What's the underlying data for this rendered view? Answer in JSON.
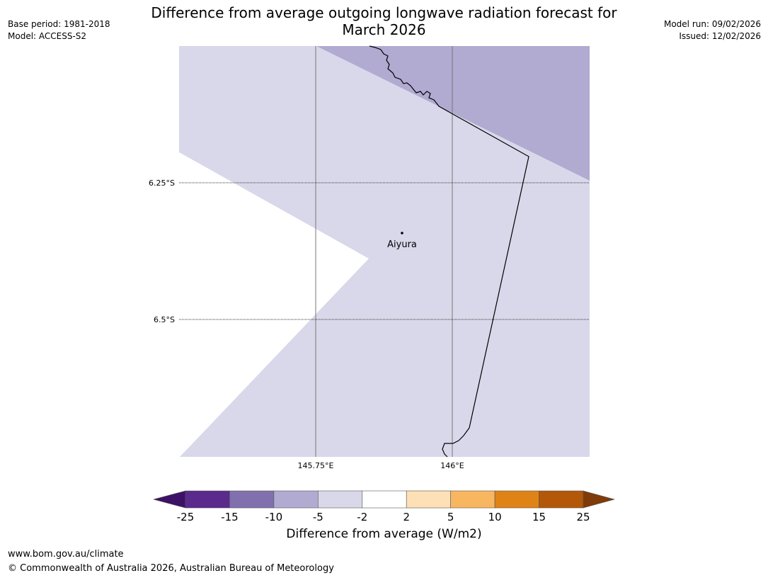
{
  "title_line1": "Difference from average outgoing longwave radiation forecast for",
  "title_line2": "March 2026",
  "base_period": "Base period: 1981-2018",
  "model": "Model: ACCESS-S2",
  "model_run": "Model run: 09/02/2026",
  "issued": "Issued: 12/02/2026",
  "map": {
    "place": "Aiyura",
    "lat_labels": [
      "6.25°S",
      "6.5°S"
    ],
    "lon_labels": [
      "145.75°E",
      "146°E"
    ]
  },
  "colorbar": {
    "label": "Difference from average (W/m2)",
    "ticks": [
      "-25",
      "-15",
      "-10",
      "-5",
      "-2",
      "2",
      "5",
      "10",
      "15",
      "25"
    ],
    "colors": [
      "#3d1166",
      "#5a2a8c",
      "#8170ae",
      "#b1aad1",
      "#d8d8ea",
      "#ffffff",
      "#fde0b5",
      "#f9b660",
      "#e08316",
      "#b35808",
      "#7f3b08"
    ]
  },
  "footer_url": "www.bom.gov.au/climate",
  "footer_copyright": "© Commonwealth of Australia 2026, Australian Bureau of Meteorology"
}
